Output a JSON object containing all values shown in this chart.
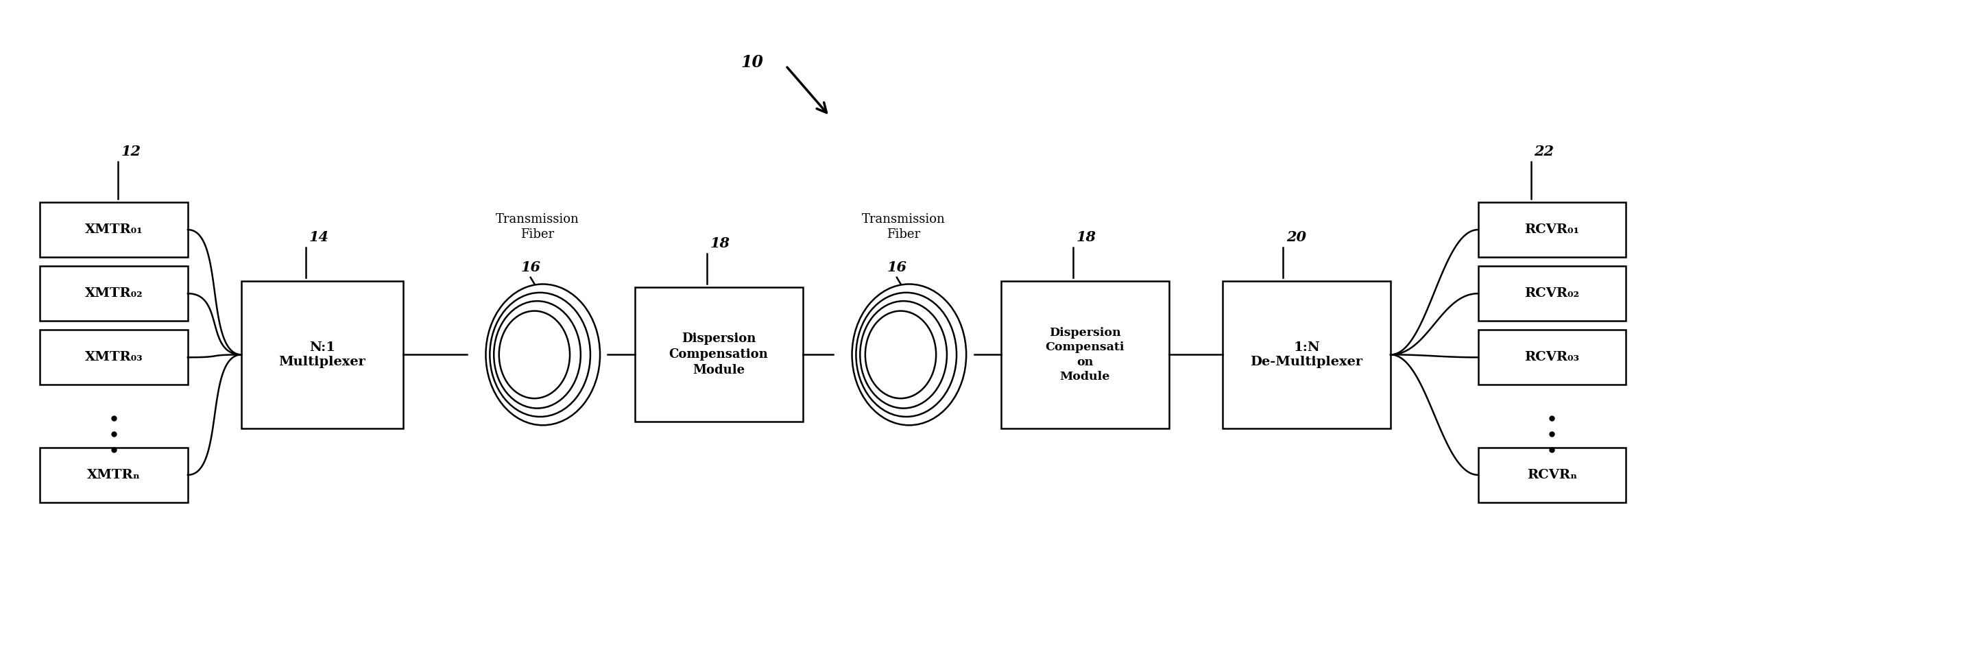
{
  "bg_color": "#ffffff",
  "line_color": "#000000",
  "fig_width": 28.92,
  "fig_height": 9.73,
  "xmtr_labels": [
    "XMTR₀₁",
    "XMTR₀₂",
    "XMTR₀₃",
    "XMTRₙ"
  ],
  "rcvr_labels": [
    "RCVR₀₁",
    "RCVR₀₂",
    "RCVR₀₃",
    "RCVRₙ"
  ],
  "mux_label": "N:1\nMultiplexer",
  "demux_label": "1:N\nDe-Multiplexer",
  "dcm1_label": "Dispersion\nCompensation\nModule",
  "dcm2_label": "Dispersion\nCompensati\non\nModule",
  "tf_label": "Transmission\nFiber",
  "ref_10": "10",
  "ref_12": "12",
  "ref_14": "14",
  "ref_16a": "16",
  "ref_16b": "16",
  "ref_18a": "18",
  "ref_18b": "18",
  "ref_20": "20",
  "ref_22": "22"
}
